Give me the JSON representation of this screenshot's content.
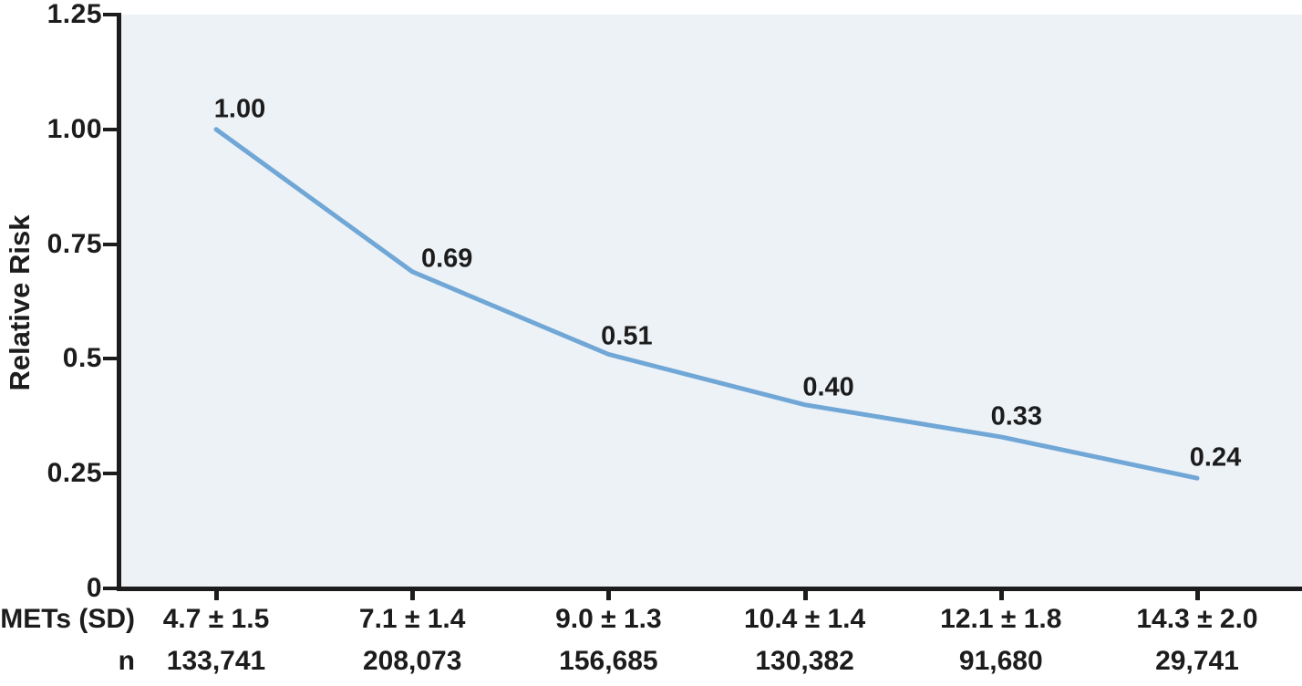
{
  "chart_data": {
    "type": "line",
    "ylabel": "Relative Risk",
    "ylim": [
      0,
      1.25
    ],
    "grid": false,
    "legend": "none",
    "y_ticks": [
      {
        "label": "1.25",
        "value": 1.25
      },
      {
        "label": "1.00",
        "value": 1.0
      },
      {
        "label": "0.75",
        "value": 0.75
      },
      {
        "label": "0.5",
        "value": 0.5
      },
      {
        "label": "0.25",
        "value": 0.25
      },
      {
        "label": "0",
        "value": 0
      }
    ],
    "series": [
      {
        "name": "Relative Risk",
        "values": [
          1.0,
          0.69,
          0.51,
          0.4,
          0.33,
          0.24
        ],
        "point_labels": [
          "1.00",
          "0.69",
          "0.51",
          "0.40",
          "0.33",
          "0.24"
        ]
      }
    ],
    "x_rows": [
      {
        "header": "METs (SD)",
        "cells": [
          "4.7 ± 1.5",
          "7.1 ± 1.4",
          "9.0 ± 1.3",
          "10.4 ± 1.4",
          "12.1 ± 1.8",
          "14.3 ± 2.0"
        ]
      },
      {
        "header": "n",
        "cells": [
          "133,741",
          "208,073",
          "156,685",
          "130,382",
          "91,680",
          "29,741"
        ]
      }
    ],
    "colors": {
      "line": "#71a7d6",
      "plot_bg": "#edf2f7",
      "axis": "#1c1c1c",
      "text": "#1c1c1c"
    }
  }
}
